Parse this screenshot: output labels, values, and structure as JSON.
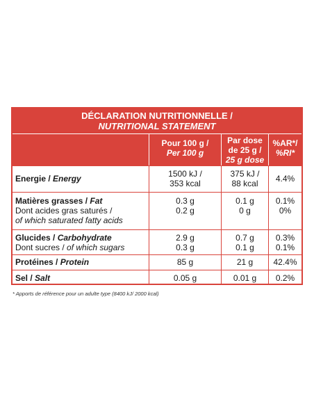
{
  "title": {
    "fr": "DÉCLARATION NUTRITIONNELLE /",
    "en": "NUTRITIONAL STATEMENT"
  },
  "columns": {
    "per100g": [
      "Pour 100 g /",
      "Per 100 g"
    ],
    "perdose": [
      "Par dose",
      "de 25 g /",
      "25 g dose"
    ],
    "ar": [
      "%AR*/",
      "%RI*"
    ]
  },
  "rows": [
    {
      "label_fr": "Energie / ",
      "label_en": "Energy",
      "sub": "",
      "v100": [
        "1500 kJ /",
        "353 kcal"
      ],
      "vdose": [
        "375 kJ /",
        "88 kcal"
      ],
      "var": "4.4%"
    },
    {
      "label_fr": "Matières grasses / ",
      "label_en": "Fat",
      "sub": [
        "Dont acides gras saturés /",
        "of which saturated fatty acids"
      ],
      "v100": [
        "0.3 g",
        "0.2 g"
      ],
      "vdose": [
        "0.1 g",
        "0 g"
      ],
      "var": [
        "0.1%",
        "0%"
      ]
    },
    {
      "label_fr": "Glucides / ",
      "label_en": "Carbohydrate",
      "sub": [
        "Dont sucres / ",
        "of which sugars"
      ],
      "v100": [
        "2.9 g",
        "0.3 g"
      ],
      "vdose": [
        "0.7 g",
        "0.1 g"
      ],
      "var": [
        "0.3%",
        "0.1%"
      ]
    },
    {
      "label_fr": "Protéines / ",
      "label_en": "Protein",
      "v100": "85 g",
      "vdose": "21 g",
      "var": "42.4%"
    },
    {
      "label_fr": "Sel / ",
      "label_en": "Salt",
      "v100": "0.05 g",
      "vdose": "0.01 g",
      "var": "0.2%"
    }
  ],
  "footnote": "* Apports de référence pour un adulte type (8400 kJ/ 2000 kcal)"
}
